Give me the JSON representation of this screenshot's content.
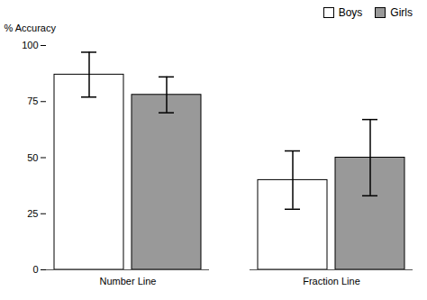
{
  "chart_data": {
    "type": "bar",
    "categories": [
      "Number Line",
      "Fraction Line"
    ],
    "series": [
      {
        "name": "Boys",
        "color": "#ffffff",
        "values": [
          87,
          40
        ],
        "errors": [
          10,
          13
        ]
      },
      {
        "name": "Girls",
        "color": "#999999",
        "values": [
          78,
          50
        ],
        "errors": [
          8,
          17
        ]
      }
    ],
    "ylabel": "% Accuracy",
    "ylim": [
      0,
      100
    ],
    "yticks": [
      0,
      25,
      50,
      75,
      100
    ],
    "legend": "upper right",
    "grid": false
  }
}
